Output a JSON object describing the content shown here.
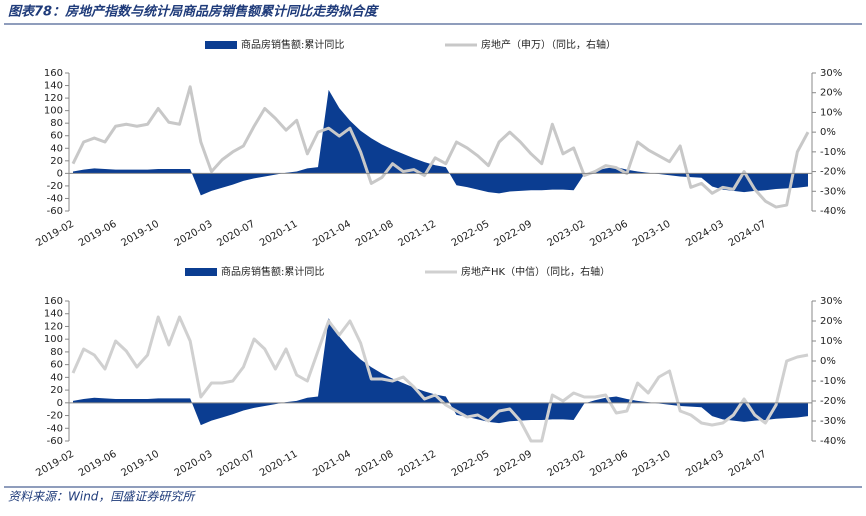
{
  "title": "图表78：房地产指数与统计局商品房销售额累计同比走势拟合度",
  "source": "资料来源：Wind，国盛证券研究所",
  "chart_data": [
    {
      "type": "line",
      "categories": [
        "2019-02",
        null,
        null,
        null,
        "2019-06",
        null,
        null,
        null,
        "2019-10",
        null,
        null,
        null,
        null,
        "2020-03",
        null,
        null,
        null,
        "2020-07",
        null,
        null,
        null,
        "2020-11",
        null,
        null,
        null,
        null,
        "2021-04",
        null,
        null,
        null,
        "2021-08",
        null,
        null,
        null,
        "2021-12",
        null,
        null,
        null,
        null,
        "2022-05",
        null,
        null,
        null,
        "2022-09",
        null,
        null,
        null,
        null,
        "2023-02",
        null,
        null,
        null,
        "2023-06",
        null,
        null,
        null,
        "2023-10",
        null,
        null,
        null,
        null,
        "2024-03",
        null,
        null,
        null,
        "2024-07",
        null,
        null,
        null,
        null
      ],
      "ylim": [
        -60,
        160
      ],
      "yticks": [
        -60,
        -40,
        -20,
        0,
        20,
        40,
        60,
        80,
        100,
        120,
        140,
        160
      ],
      "y2lim": [
        -40,
        30
      ],
      "y2ticks": [
        {
          "value": -40,
          "label": "-40%"
        },
        {
          "value": -30,
          "label": "-30%"
        },
        {
          "value": -20,
          "label": "-20%"
        },
        {
          "value": -10,
          "label": "-10%"
        },
        {
          "value": 0,
          "label": "0%"
        },
        {
          "value": 10,
          "label": "10%"
        },
        {
          "value": 20,
          "label": "20%"
        },
        {
          "value": 30,
          "label": "30%"
        }
      ],
      "series": [
        {
          "name": "商品房销售额:累计同比",
          "type": "area",
          "color": "#0b3d91",
          "values": [
            3,
            6,
            8,
            7,
            6,
            6,
            6,
            6,
            7,
            7,
            7,
            7,
            -35,
            -28,
            -23,
            -18,
            -12,
            -8,
            -5,
            -2,
            1,
            3,
            8,
            10,
            133,
            104,
            84,
            68,
            56,
            46,
            38,
            31,
            24,
            18,
            13,
            10,
            -19,
            -22,
            -26,
            -30,
            -32,
            -29,
            -28,
            -27,
            -27,
            -26,
            -26,
            -27,
            -1,
            4,
            8,
            10,
            6,
            3,
            1,
            -1,
            -3,
            -5,
            -6,
            -7,
            -21,
            -26,
            -28,
            -30,
            -28,
            -27,
            -25,
            -24,
            -23,
            -21
          ]
        },
        {
          "name": "房地产（申万）（同比，右轴）",
          "type": "line",
          "axis": "y2",
          "color": "#c8c8c8",
          "values": [
            -16,
            -5,
            -3,
            -5,
            3,
            4,
            3,
            4,
            12,
            5,
            4,
            23,
            -5,
            -20,
            -14,
            -10,
            -7,
            3,
            12,
            7,
            1,
            6,
            -11,
            0,
            2,
            -2,
            2,
            -10,
            -26,
            -23,
            -16,
            -20,
            -19,
            -22,
            -13,
            -16,
            -5,
            -8,
            -12,
            -17,
            -5,
            0,
            -5,
            -11,
            -16,
            4,
            -11,
            -8,
            -22,
            -20,
            -17,
            -18,
            -21,
            -5,
            -9,
            -12,
            -15,
            -7,
            -28,
            -26,
            -31,
            -28,
            -29,
            -20,
            -29,
            -35,
            -38,
            -37,
            -10,
            0
          ]
        }
      ]
    },
    {
      "type": "line",
      "categories": [
        "2019-02",
        null,
        null,
        null,
        "2019-06",
        null,
        null,
        null,
        "2019-10",
        null,
        null,
        null,
        null,
        "2020-03",
        null,
        null,
        null,
        "2020-07",
        null,
        null,
        null,
        "2020-11",
        null,
        null,
        null,
        null,
        "2021-04",
        null,
        null,
        null,
        "2021-08",
        null,
        null,
        null,
        "2021-12",
        null,
        null,
        null,
        null,
        "2022-05",
        null,
        null,
        null,
        "2022-09",
        null,
        null,
        null,
        null,
        "2023-02",
        null,
        null,
        null,
        "2023-06",
        null,
        null,
        null,
        "2023-10",
        null,
        null,
        null,
        null,
        "2024-03",
        null,
        null,
        null,
        "2024-07",
        null,
        null,
        null,
        null
      ],
      "ylim": [
        -60,
        160
      ],
      "yticks": [
        -60,
        -40,
        -20,
        0,
        20,
        40,
        60,
        80,
        100,
        120,
        140,
        160
      ],
      "y2lim": [
        -40,
        30
      ],
      "y2ticks": [
        {
          "value": -40,
          "label": "-40%"
        },
        {
          "value": -30,
          "label": "-30%"
        },
        {
          "value": -20,
          "label": "-20%"
        },
        {
          "value": -10,
          "label": "-10%"
        },
        {
          "value": 0,
          "label": "0%"
        },
        {
          "value": 10,
          "label": "10%"
        },
        {
          "value": 20,
          "label": "20%"
        },
        {
          "value": 30,
          "label": "30%"
        }
      ],
      "series": [
        {
          "name": "商品房销售额:累计同比",
          "type": "area",
          "color": "#0b3d91",
          "values": [
            3,
            6,
            8,
            7,
            6,
            6,
            6,
            6,
            7,
            7,
            7,
            7,
            -35,
            -28,
            -23,
            -18,
            -12,
            -8,
            -5,
            -2,
            1,
            3,
            8,
            10,
            133,
            104,
            84,
            68,
            56,
            46,
            38,
            31,
            24,
            18,
            13,
            10,
            -19,
            -22,
            -26,
            -30,
            -32,
            -29,
            -28,
            -27,
            -27,
            -26,
            -26,
            -27,
            -1,
            4,
            8,
            10,
            6,
            3,
            1,
            -1,
            -3,
            -5,
            -6,
            -7,
            -21,
            -26,
            -28,
            -30,
            -28,
            -27,
            -25,
            -24,
            -23,
            -21
          ]
        },
        {
          "name": "房地产HK（中信）（同比，右轴）",
          "type": "line",
          "axis": "y2",
          "color": "#d0d0d0",
          "values": [
            -6,
            6,
            3,
            -4,
            10,
            5,
            -3,
            3,
            22,
            8,
            22,
            10,
            -18,
            -11,
            -11,
            -10,
            -3,
            11,
            6,
            -4,
            6,
            -7,
            -10,
            5,
            20,
            13,
            20,
            9,
            -9,
            -9,
            -10,
            -8,
            -13,
            -19,
            -17,
            -22,
            -25,
            -28,
            -27,
            -30,
            -25,
            -24,
            -30,
            -40,
            -40,
            -17,
            -20,
            -16,
            -18,
            -18,
            -17,
            -26,
            -25,
            -11,
            -16,
            -8,
            -5,
            -25,
            -27,
            -31,
            -32,
            -31,
            -27,
            -19,
            -27,
            -31,
            -22,
            0,
            2,
            3
          ]
        }
      ]
    }
  ]
}
